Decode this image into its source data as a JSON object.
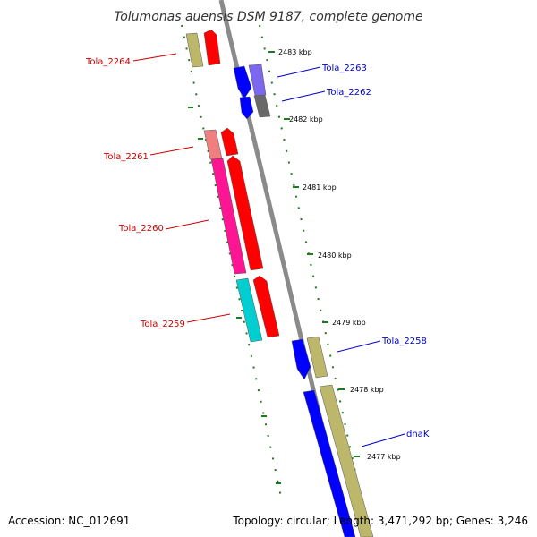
{
  "title": "Tolumonas auensis DSM 9187, complete genome",
  "accession": "Accession: NC_012691",
  "topology": "Topology: circular; Length: 3,471,292 bp; Genes: 3,246",
  "colors": {
    "backbone": "#8a8a8a",
    "tick": "#1e7a1e",
    "label_forward": "#cc0000",
    "label_reverse": "#0000cc",
    "khaki": "#bdb76b",
    "red": "#ff0000",
    "pink": "#f08080",
    "magenta": "#ff1493",
    "cyan": "#00ced1",
    "blue": "#0000ff",
    "purple": "#7b68ee",
    "gray": "#696969"
  },
  "scale_labels": [
    "2483 kbp",
    "2482 kbp",
    "2481 kbp",
    "2480 kbp",
    "2479 kbp",
    "2478 kbp",
    "2477 kbp"
  ],
  "gene_labels": [
    {
      "text": "Tola_2264",
      "strand": "forward"
    },
    {
      "text": "Tola_2263",
      "strand": "reverse"
    },
    {
      "text": "Tola_2262",
      "strand": "reverse"
    },
    {
      "text": "Tola_2261",
      "strand": "forward"
    },
    {
      "text": "Tola_2260",
      "strand": "forward"
    },
    {
      "text": "Tola_2259",
      "strand": "forward"
    },
    {
      "text": "Tola_2258",
      "strand": "reverse"
    },
    {
      "text": "dnaK",
      "strand": "reverse"
    }
  ]
}
